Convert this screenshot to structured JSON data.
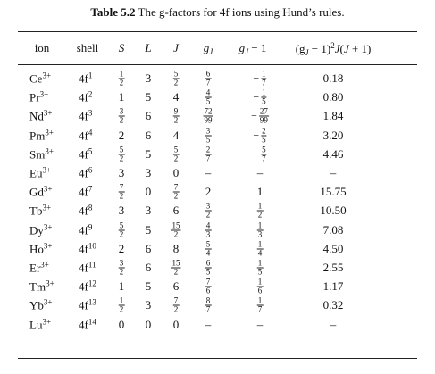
{
  "caption": {
    "label": "Table 5.2",
    "text": "The g-factors for 4f ions using Hund’s rules."
  },
  "headers": {
    "ion": "ion",
    "shell": "shell",
    "S": "S",
    "L": "L",
    "J": "J",
    "gJ_base": "g",
    "gJ_sub": "J",
    "gJm1_base": "g",
    "gJm1_sub": "J",
    "gJm1_rest": " − 1",
    "dg_open": "(g",
    "dg_sub": "J",
    "dg_mid": " − 1)",
    "dg_sup": "2",
    "dg_J1": "J",
    "dg_paren": "(",
    "dg_J2": "J",
    "dg_end": " + 1)"
  },
  "rows": [
    {
      "ion_base": "Ce",
      "ion_sup": "3+",
      "shell_base": "4f",
      "shell_sup": "1",
      "S": {
        "n": "1",
        "d": "2"
      },
      "L": "3",
      "J": {
        "n": "5",
        "d": "2"
      },
      "gJ": {
        "n": "6",
        "d": "7"
      },
      "gJm1": {
        "neg": true,
        "n": "1",
        "d": "7"
      },
      "dg": "0.18"
    },
    {
      "ion_base": "Pr",
      "ion_sup": "3+",
      "shell_base": "4f",
      "shell_sup": "2",
      "S": "1",
      "L": "5",
      "J": "4",
      "gJ": {
        "n": "4",
        "d": "5"
      },
      "gJm1": {
        "neg": true,
        "n": "1",
        "d": "5"
      },
      "dg": "0.80"
    },
    {
      "ion_base": "Nd",
      "ion_sup": "3+",
      "shell_base": "4f",
      "shell_sup": "3",
      "S": {
        "n": "3",
        "d": "2"
      },
      "L": "6",
      "J": {
        "n": "9",
        "d": "2"
      },
      "gJ": {
        "n": "72",
        "d": "99"
      },
      "gJm1": {
        "neg": true,
        "n": "27",
        "d": "99"
      },
      "dg": "1.84"
    },
    {
      "ion_base": "Pm",
      "ion_sup": "3+",
      "shell_base": "4f",
      "shell_sup": "4",
      "S": "2",
      "L": "6",
      "J": "4",
      "gJ": {
        "n": "3",
        "d": "5"
      },
      "gJm1": {
        "neg": true,
        "n": "2",
        "d": "5"
      },
      "dg": "3.20"
    },
    {
      "ion_base": "Sm",
      "ion_sup": "3+",
      "shell_base": "4f",
      "shell_sup": "5",
      "S": {
        "n": "5",
        "d": "2"
      },
      "L": "5",
      "J": {
        "n": "5",
        "d": "2"
      },
      "gJ": {
        "n": "2",
        "d": "7"
      },
      "gJm1": {
        "neg": true,
        "n": "5",
        "d": "7"
      },
      "dg": "4.46"
    },
    {
      "ion_base": "Eu",
      "ion_sup": "3+",
      "shell_base": "4f",
      "shell_sup": "6",
      "S": "3",
      "L": "3",
      "J": "0",
      "gJ": "–",
      "gJm1": "–",
      "dg": "–"
    },
    {
      "ion_base": "Gd",
      "ion_sup": "3+",
      "shell_base": "4f",
      "shell_sup": "7",
      "S": {
        "n": "7",
        "d": "2"
      },
      "L": "0",
      "J": {
        "n": "7",
        "d": "2"
      },
      "gJ": "2",
      "gJm1": "1",
      "dg": "15.75"
    },
    {
      "ion_base": "Tb",
      "ion_sup": "3+",
      "shell_base": "4f",
      "shell_sup": "8",
      "S": "3",
      "L": "3",
      "J": "6",
      "gJ": {
        "n": "3",
        "d": "2"
      },
      "gJm1": {
        "n": "1",
        "d": "2"
      },
      "dg": "10.50"
    },
    {
      "ion_base": "Dy",
      "ion_sup": "3+",
      "shell_base": "4f",
      "shell_sup": "9",
      "S": {
        "n": "5",
        "d": "2"
      },
      "L": "5",
      "J": {
        "n": "15",
        "d": "2"
      },
      "gJ": {
        "n": "4",
        "d": "3"
      },
      "gJm1": {
        "n": "1",
        "d": "3"
      },
      "dg": "7.08"
    },
    {
      "ion_base": "Ho",
      "ion_sup": "3+",
      "shell_base": "4f",
      "shell_sup": "10",
      "S": "2",
      "L": "6",
      "J": "8",
      "gJ": {
        "n": "5",
        "d": "4"
      },
      "gJm1": {
        "n": "1",
        "d": "4"
      },
      "dg": "4.50"
    },
    {
      "ion_base": "Er",
      "ion_sup": "3+",
      "shell_base": "4f",
      "shell_sup": "11",
      "S": {
        "n": "3",
        "d": "2"
      },
      "L": "6",
      "J": {
        "n": "15",
        "d": "2"
      },
      "gJ": {
        "n": "6",
        "d": "5"
      },
      "gJm1": {
        "n": "1",
        "d": "5"
      },
      "dg": "2.55"
    },
    {
      "ion_base": "Tm",
      "ion_sup": "3+",
      "shell_base": "4f",
      "shell_sup": "12",
      "S": "1",
      "L": "5",
      "J": "6",
      "gJ": {
        "n": "7",
        "d": "6"
      },
      "gJm1": {
        "n": "1",
        "d": "6"
      },
      "dg": "1.17"
    },
    {
      "ion_base": "Yb",
      "ion_sup": "3+",
      "shell_base": "4f",
      "shell_sup": "13",
      "S": {
        "n": "1",
        "d": "2"
      },
      "L": "3",
      "J": {
        "n": "7",
        "d": "2"
      },
      "gJ": {
        "n": "8",
        "d": "7"
      },
      "gJm1": {
        "n": "1",
        "d": "7"
      },
      "dg": "0.32"
    },
    {
      "ion_base": "Lu",
      "ion_sup": "3+",
      "shell_base": "4f",
      "shell_sup": "14",
      "S": "0",
      "L": "0",
      "J": "0",
      "gJ": "–",
      "gJm1": "–",
      "dg": "–"
    }
  ]
}
